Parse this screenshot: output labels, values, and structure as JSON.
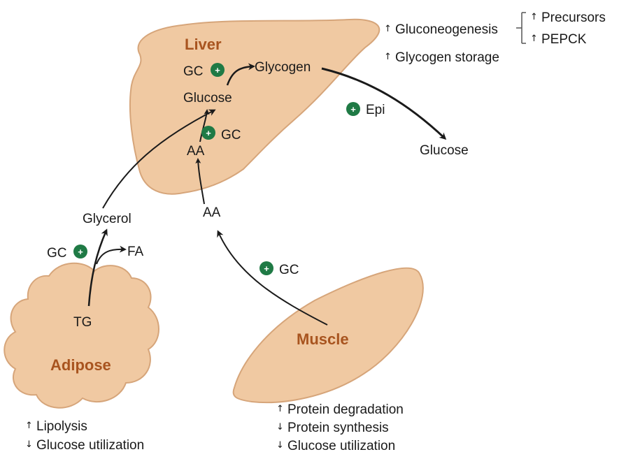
{
  "organs": {
    "liver": "Liver",
    "adipose": "Adipose",
    "muscle": "Muscle"
  },
  "liver_labels": {
    "gc_glycogen": "GC",
    "glycogen": "Glycogen",
    "glucose": "Glucose",
    "gc_aa": "GC",
    "aa": "AA",
    "epi": "Epi"
  },
  "outside_labels": {
    "glucose_out": "Glucose",
    "glycerol": "Glycerol",
    "gc_adipose": "GC",
    "fa": "FA",
    "tg": "TG",
    "aa_mid": "AA",
    "gc_muscle": "GC"
  },
  "liver_effects": {
    "gluconeogenesis": "Gluconeogenesis",
    "precursors": "Precursors",
    "pepck": "PEPCK",
    "glycogen_storage": "Glycogen storage"
  },
  "adipose_effects": [
    {
      "arrow": "up",
      "text": "Lipolysis"
    },
    {
      "arrow": "down",
      "text": "Glucose utilization"
    }
  ],
  "muscle_effects": [
    {
      "arrow": "up",
      "text": "Protein degradation"
    },
    {
      "arrow": "down",
      "text": "Protein synthesis"
    },
    {
      "arrow": "down",
      "text": "Glucose utilization"
    }
  ],
  "symbols": {
    "plus": "+",
    "up": "↑",
    "down": "↓"
  },
  "colors": {
    "tissue_fill": "#f0c9a2",
    "tissue_stroke": "#d6a57a",
    "organ_label": "#a8541f",
    "stimulation_badge": "#1f7a45",
    "arrow": "#1a1a1a"
  }
}
